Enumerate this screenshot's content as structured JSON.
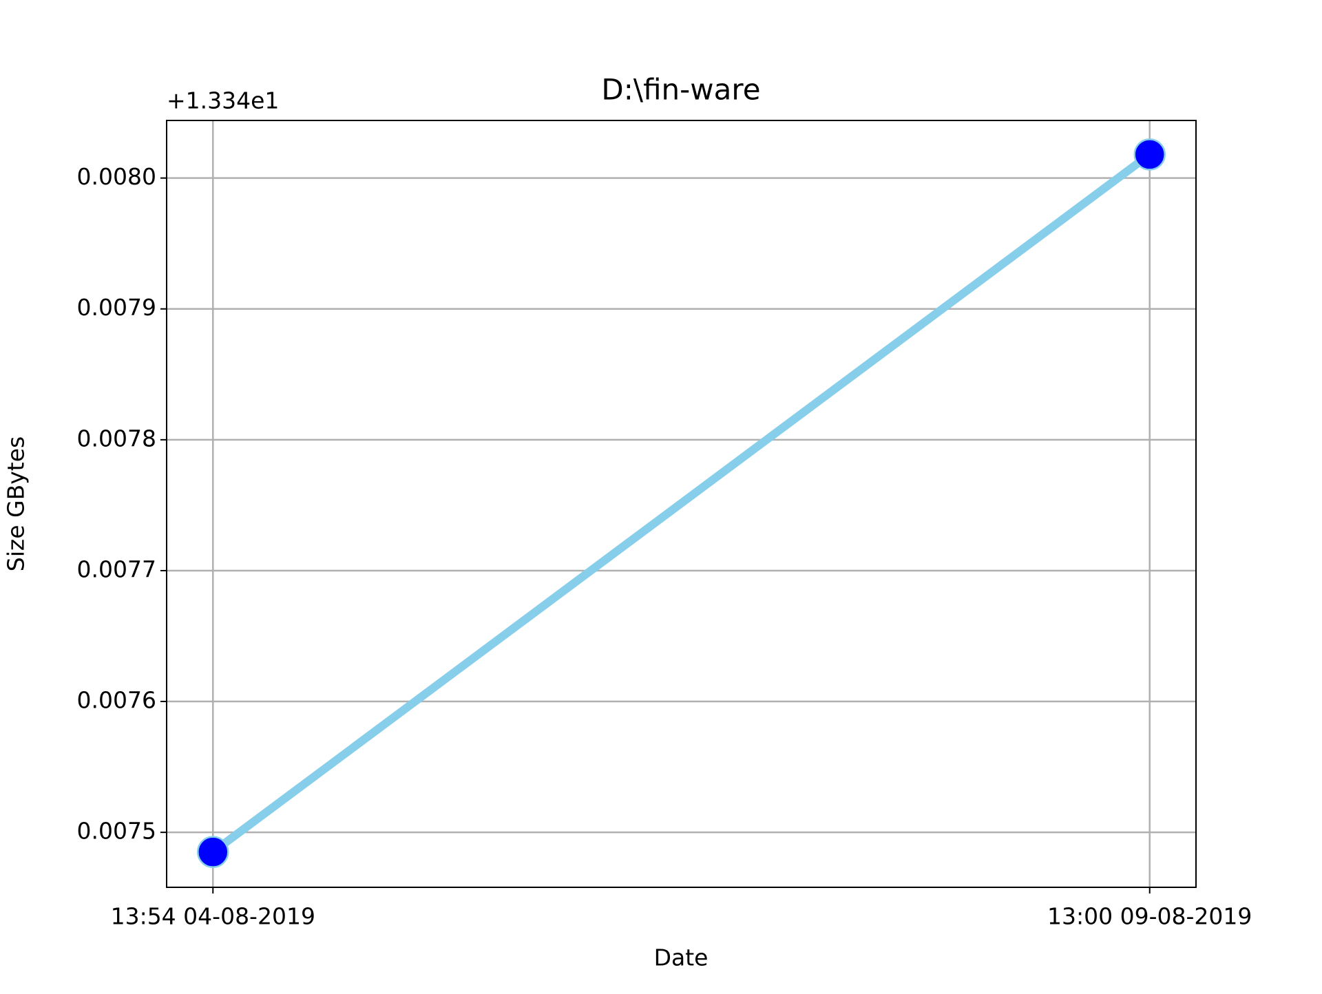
{
  "chart_data": {
    "type": "line",
    "title": "D:\\fin-ware",
    "xlabel": "Date",
    "ylabel": "Size GBytes",
    "y_offset_text": "+1.334e1",
    "categories": [
      "13:54 04-08-2019",
      "13:00 09-08-2019"
    ],
    "values": [
      0.007485,
      0.008018
    ],
    "color": "#87ceeb",
    "marker_color": "#0000ff",
    "ylim": [
      0.007458,
      0.008044
    ],
    "yticks": [
      {
        "value": 0.0075,
        "label": "0.0075"
      },
      {
        "value": 0.0076,
        "label": "0.0076"
      },
      {
        "value": 0.0077,
        "label": "0.0077"
      },
      {
        "value": 0.0078,
        "label": "0.0078"
      },
      {
        "value": 0.0079,
        "label": "0.0079"
      },
      {
        "value": 0.008,
        "label": "0.0080"
      }
    ],
    "grid": true
  }
}
